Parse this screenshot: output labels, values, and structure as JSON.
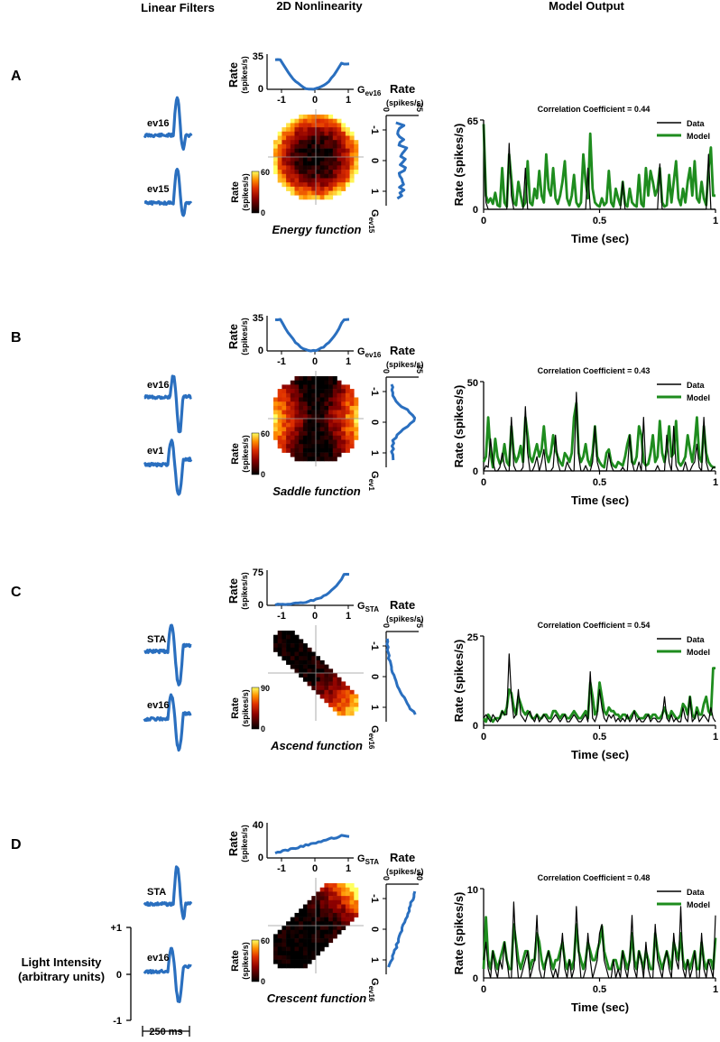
{
  "headers": {
    "linear": "Linear Filters",
    "nonlin": "2D Nonlinearity",
    "output": "Model Output"
  },
  "colors": {
    "filter": "#2a6fbf",
    "data": "#000000",
    "model": "#1e8c1e"
  },
  "legend": {
    "data": "Data",
    "model": "Model"
  },
  "axis_common": {
    "rate_label": "Rate",
    "rate_units": "(spikes/s)",
    "output_ylabel": "Rate (spikes/s)",
    "output_xlabel": "Time (sec)",
    "g_prefix": "G",
    "x_ticks": [
      "-1",
      "0",
      "1"
    ],
    "time_ticks": [
      "0",
      "0.5",
      "1"
    ],
    "colorbar_label": "Rate",
    "colorbar_units": "(spikes/s)",
    "colorbar_min": "0"
  },
  "scale": {
    "title": "Light Intensity",
    "subtitle": "(arbitrary units)",
    "plus": "+1",
    "zero": "0",
    "minus": "-1",
    "time": "250 ms"
  },
  "panels": [
    {
      "label": "A",
      "filter1": "ev16",
      "filter2": "ev15",
      "g1_sub": "ev16",
      "g2_sub": "ev15",
      "marg1_max": "35",
      "marg2_max": "35",
      "colorbar_max": "60",
      "function_name": "Energy function",
      "corr_text": "Correlation Coefficient = 0.44",
      "out_ymax": "65",
      "chart_data": {
        "type": "line",
        "title": "Correlation Coefficient = 0.44",
        "xlabel": "Time (sec)",
        "ylabel": "Rate (spikes/s)",
        "xlim": [
          0,
          1
        ],
        "ylim": [
          0,
          65
        ],
        "series": [
          {
            "name": "Data",
            "values": [
              62,
              5,
              0,
              0,
              0,
              0,
              0,
              0,
              0,
              0,
              0,
              48,
              10,
              0,
              0,
              0,
              0,
              0,
              30,
              0,
              0,
              0,
              0,
              0,
              0,
              0,
              0,
              0,
              0,
              0,
              0,
              0,
              0,
              0,
              0,
              0,
              0,
              0,
              0,
              0,
              0,
              0,
              0,
              0,
              0,
              30,
              0,
              0,
              0,
              0,
              0,
              0,
              0,
              0,
              0,
              0,
              0,
              0,
              0,
              0,
              20,
              0,
              0,
              0,
              0,
              0,
              0,
              0,
              0,
              0,
              0,
              0,
              0,
              0,
              0,
              0,
              33,
              0,
              0,
              0,
              0,
              0,
              0,
              0,
              0,
              0,
              0,
              0,
              0,
              0,
              0,
              0,
              0,
              0,
              0,
              0,
              0,
              40,
              0,
              0,
              0
            ]
          },
          {
            "name": "Model",
            "values": [
              62,
              10,
              5,
              8,
              4,
              12,
              3,
              2,
              30,
              5,
              2,
              40,
              22,
              5,
              3,
              20,
              10,
              2,
              5,
              35,
              5,
              3,
              15,
              8,
              28,
              10,
              5,
              40,
              15,
              10,
              30,
              8,
              4,
              10,
              20,
              35,
              8,
              3,
              10,
              25,
              5,
              2,
              5,
              40,
              20,
              8,
              55,
              15,
              5,
              3,
              2,
              8,
              3,
              5,
              28,
              5,
              2,
              15,
              8,
              3,
              20,
              4,
              2,
              15,
              5,
              3,
              2,
              25,
              4,
              2,
              30,
              10,
              28,
              20,
              10,
              15,
              30,
              5,
              2,
              3,
              25,
              5,
              20,
              35,
              8,
              3,
              15,
              5,
              20,
              30,
              10,
              35,
              8,
              5,
              20,
              8,
              3,
              30,
              45,
              10,
              10
            ]
          }
        ]
      }
    },
    {
      "label": "B",
      "filter1": "ev16",
      "filter2": "ev1",
      "g1_sub": "ev16",
      "g2_sub": "ev1",
      "marg1_max": "35",
      "marg2_max": "35",
      "colorbar_max": "60",
      "function_name": "Saddle function",
      "corr_text": "Correlation Coefficient = 0.43",
      "out_ymax": "50",
      "chart_data": {
        "type": "line",
        "title": "Correlation Coefficient = 0.43",
        "xlabel": "Time (sec)",
        "ylabel": "Rate (spikes/s)",
        "xlim": [
          0,
          1
        ],
        "ylim": [
          0,
          50
        ],
        "series": [
          {
            "name": "Data",
            "values": [
              0,
              3,
              2,
              18,
              5,
              0,
              0,
              2,
              10,
              3,
              0,
              0,
              30,
              3,
              0,
              0,
              0,
              2,
              36,
              10,
              0,
              0,
              3,
              8,
              0,
              5,
              12,
              0,
              0,
              0,
              2,
              20,
              5,
              0,
              0,
              0,
              5,
              2,
              0,
              0,
              44,
              8,
              0,
              0,
              3,
              0,
              0,
              5,
              25,
              5,
              0,
              0,
              0,
              0,
              10,
              3,
              0,
              0,
              0,
              0,
              2,
              0,
              0,
              20,
              5,
              0,
              0,
              5,
              0,
              30,
              0,
              0,
              0,
              0,
              0,
              3,
              0,
              0,
              0,
              20,
              5,
              0,
              25,
              3,
              0,
              0,
              0,
              5,
              0,
              0,
              3,
              5,
              15,
              2,
              0,
              30,
              5,
              0,
              0,
              2,
              2
            ]
          },
          {
            "name": "Model",
            "values": [
              5,
              8,
              30,
              10,
              2,
              18,
              8,
              4,
              6,
              15,
              5,
              3,
              25,
              10,
              5,
              8,
              14,
              5,
              30,
              20,
              8,
              5,
              10,
              15,
              8,
              12,
              25,
              10,
              5,
              10,
              20,
              12,
              8,
              5,
              3,
              10,
              8,
              5,
              10,
              30,
              38,
              10,
              5,
              8,
              15,
              6,
              3,
              10,
              25,
              8,
              5,
              3,
              2,
              10,
              12,
              5,
              3,
              2,
              5,
              4,
              3,
              8,
              15,
              20,
              5,
              4,
              8,
              25,
              20,
              5,
              3,
              4,
              10,
              20,
              5,
              8,
              28,
              10,
              5,
              12,
              25,
              8,
              10,
              28,
              5,
              3,
              5,
              8,
              20,
              12,
              5,
              15,
              30,
              8,
              5,
              25,
              10,
              5,
              3,
              2,
              2
            ]
          }
        ]
      }
    },
    {
      "label": "C",
      "filter1": "STA",
      "filter2": "ev16",
      "g1_sub": "STA",
      "g2_sub": "ev16",
      "marg1_max": "75",
      "marg2_max": "75",
      "colorbar_max": "90",
      "function_name": "Ascend function",
      "corr_text": "Correlation Coefficient = 0.54",
      "out_ymax": "25",
      "chart_data": {
        "type": "line",
        "title": "Correlation Coefficient = 0.54",
        "xlabel": "Time (sec)",
        "ylabel": "Rate (spikes/s)",
        "xlim": [
          0,
          1
        ],
        "ylim": [
          0,
          25
        ],
        "series": [
          {
            "name": "Data",
            "values": [
              2,
              3,
              2,
              1,
              3,
              2,
              1,
              2,
              4,
              3,
              3,
              20,
              8,
              2,
              3,
              10,
              3,
              2,
              1,
              3,
              4,
              2,
              1,
              3,
              1,
              2,
              3,
              2,
              1,
              1,
              2,
              3,
              2,
              1,
              2,
              3,
              1,
              1,
              2,
              3,
              2,
              1,
              1,
              2,
              3,
              1,
              15,
              2,
              1,
              3,
              10,
              5,
              2,
              1,
              3,
              2,
              3,
              1,
              2,
              1,
              2,
              1,
              3,
              1,
              2,
              4,
              1,
              2,
              1,
              1,
              2,
              3,
              1,
              2,
              2,
              1,
              1,
              2,
              8,
              2,
              1,
              3,
              1,
              2,
              1,
              1,
              5,
              2,
              1,
              8,
              1,
              2,
              4,
              1,
              2,
              3,
              2,
              1,
              5,
              2,
              1
            ]
          },
          {
            "name": "Model",
            "values": [
              2,
              1,
              3,
              2,
              1,
              2,
              2,
              2,
              4,
              3,
              5,
              10,
              9,
              5,
              3,
              8,
              6,
              4,
              3,
              4,
              3,
              2,
              2,
              3,
              2,
              2,
              3,
              3,
              2,
              2,
              4,
              4,
              3,
              2,
              3,
              3,
              2,
              2,
              3,
              4,
              3,
              2,
              2,
              3,
              4,
              2,
              12,
              8,
              3,
              4,
              12,
              8,
              4,
              3,
              5,
              4,
              4,
              3,
              3,
              2,
              3,
              3,
              2,
              2,
              3,
              4,
              3,
              2,
              2,
              2,
              3,
              3,
              2,
              3,
              3,
              2,
              2,
              3,
              5,
              3,
              2,
              4,
              3,
              2,
              2,
              3,
              6,
              5,
              3,
              8,
              3,
              2,
              5,
              3,
              3,
              6,
              8,
              4,
              3,
              16,
              16
            ]
          }
        ]
      }
    },
    {
      "label": "D",
      "filter1": "STA",
      "filter2": "ev16",
      "g1_sub": "STA",
      "g2_sub": "ev16",
      "marg1_max": "40",
      "marg2_max": "40",
      "colorbar_max": "60",
      "function_name": "Crescent function",
      "corr_text": "Correlation Coefficient = 0.48",
      "out_ymax": "10",
      "chart_data": {
        "type": "line",
        "title": "Correlation Coefficient = 0.48",
        "xlabel": "Time (sec)",
        "ylabel": "Rate (spikes/s)",
        "xlim": [
          0,
          1
        ],
        "ylim": [
          0,
          10
        ],
        "series": [
          {
            "name": "Data",
            "values": [
              2,
              4,
              1,
              0,
              3,
              1,
              0,
              2,
              1,
              4,
              2,
              0,
              0,
              8.5,
              3,
              0,
              0,
              1,
              2,
              3,
              0,
              1,
              2,
              7,
              1,
              0,
              0,
              2,
              3,
              1,
              0,
              1,
              0,
              2,
              5,
              1,
              0,
              2,
              0,
              1,
              8,
              3,
              0,
              0,
              1,
              5,
              2,
              0,
              1,
              2,
              5,
              6,
              2,
              1,
              0,
              0,
              2,
              0,
              1,
              0,
              3,
              1,
              0,
              2,
              7,
              1,
              0,
              3,
              2,
              0,
              4,
              1,
              0,
              0,
              6,
              2,
              1,
              0,
              2,
              3,
              1,
              0,
              5,
              2,
              1,
              8,
              1,
              0,
              2,
              0,
              1,
              3,
              0,
              0,
              5,
              1,
              0,
              2,
              1,
              0,
              7
            ]
          },
          {
            "name": "Model",
            "values": [
              1,
              6.8,
              2,
              1,
              3,
              2,
              1,
              2,
              3,
              4,
              2,
              1,
              1,
              6,
              4,
              2,
              1,
              2,
              3,
              3,
              1,
              2,
              2,
              5,
              4,
              2,
              1,
              2,
              3,
              2,
              1,
              2,
              2,
              3,
              4,
              2,
              1,
              2,
              1,
              2,
              6,
              3,
              2,
              1,
              2,
              4,
              3,
              2,
              2,
              3,
              4,
              5.8,
              3,
              2,
              1,
              1,
              2,
              2,
              1,
              1,
              3,
              2,
              1,
              2,
              5,
              2,
              1,
              3,
              2,
              1,
              3,
              2,
              1,
              1,
              5,
              3,
              2,
              1,
              2,
              3,
              2,
              1,
              4,
              3,
              2,
              5,
              2,
              1,
              2,
              1,
              2,
              3,
              1,
              1,
              4,
              2,
              1,
              2,
              2,
              1,
              4.5
            ]
          }
        ]
      }
    }
  ]
}
